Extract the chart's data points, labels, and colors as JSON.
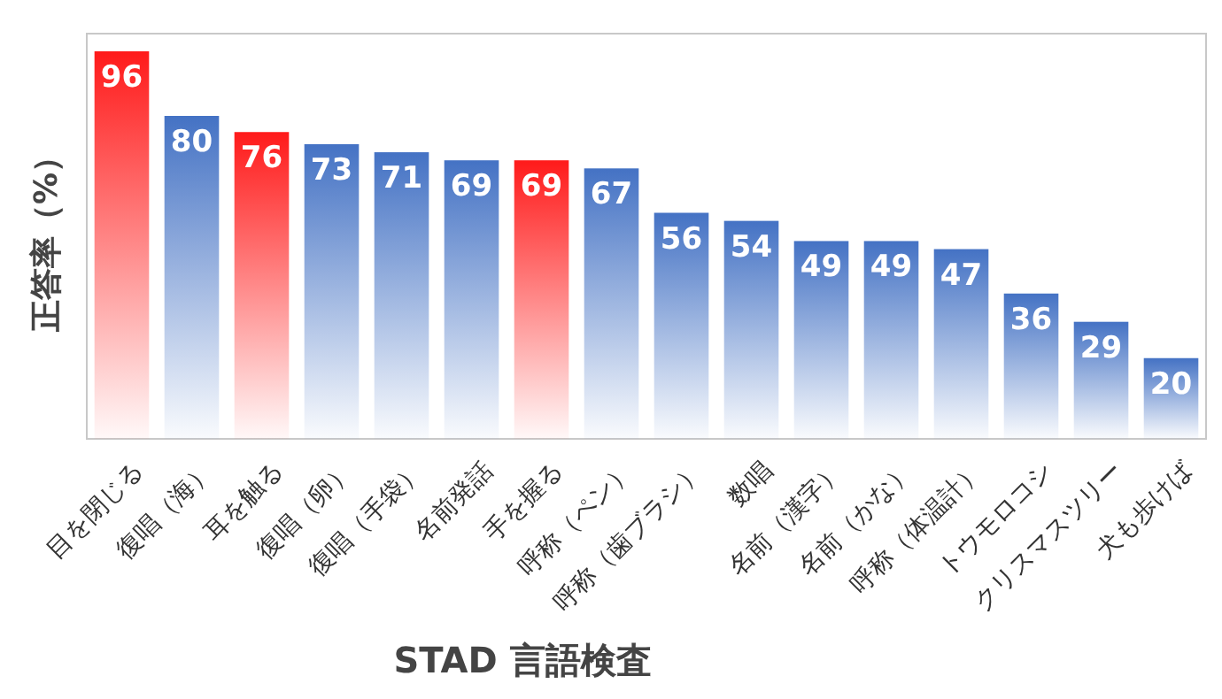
{
  "chart_data": {
    "type": "bar",
    "xlabel": "STAD 言語検査",
    "ylabel": "正答率（%）",
    "categories": [
      "目を閉じる",
      "復唱（海）",
      "耳を触る",
      "復唱（卵）",
      "復唱（手袋）",
      "名前発話",
      "手を握る",
      "呼称（ペン）",
      "呼称（歯ブラシ）",
      "数唱",
      "名前（漢字）",
      "名前（かな）",
      "呼称（体温計）",
      "トウモロコシ",
      "クリスマスツリー",
      "犬も歩けば"
    ],
    "values": [
      96,
      80,
      76,
      73,
      71,
      69,
      69,
      67,
      56,
      54,
      49,
      49,
      47,
      36,
      29,
      20
    ],
    "colors": [
      "#ff1a1a",
      "#4472c4",
      "#ff1a1a",
      "#4472c4",
      "#4472c4",
      "#4472c4",
      "#ff1a1a",
      "#4472c4",
      "#4472c4",
      "#4472c4",
      "#4472c4",
      "#4472c4",
      "#4472c4",
      "#4472c4",
      "#4472c4",
      "#4472c4"
    ],
    "data_labels": true
  }
}
